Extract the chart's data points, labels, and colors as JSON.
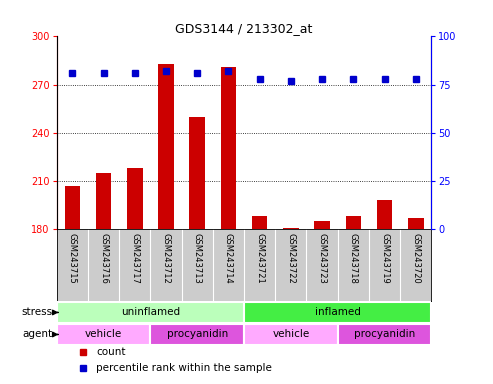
{
  "title": "GDS3144 / 213302_at",
  "samples": [
    "GSM243715",
    "GSM243716",
    "GSM243717",
    "GSM243712",
    "GSM243713",
    "GSM243714",
    "GSM243721",
    "GSM243722",
    "GSM243723",
    "GSM243718",
    "GSM243719",
    "GSM243720"
  ],
  "counts": [
    207,
    215,
    218,
    283,
    250,
    281,
    188,
    181,
    185,
    188,
    198,
    187
  ],
  "percentile_ranks": [
    81,
    81,
    81,
    82,
    81,
    82,
    78,
    77,
    78,
    78,
    78,
    78
  ],
  "ylim_left": [
    180,
    300
  ],
  "ylim_right": [
    0,
    100
  ],
  "yticks_left": [
    180,
    210,
    240,
    270,
    300
  ],
  "yticks_right": [
    0,
    25,
    50,
    75,
    100
  ],
  "bar_color": "#cc0000",
  "dot_color": "#0000cc",
  "stress_groups": [
    {
      "label": "uninflamed",
      "start": 0,
      "end": 6,
      "color": "#bbffbb"
    },
    {
      "label": "inflamed",
      "start": 6,
      "end": 12,
      "color": "#44ee44"
    }
  ],
  "agent_groups": [
    {
      "label": "vehicle",
      "start": 0,
      "end": 3,
      "color": "#ffaaff"
    },
    {
      "label": "procyanidin",
      "start": 3,
      "end": 6,
      "color": "#dd55dd"
    },
    {
      "label": "vehicle",
      "start": 6,
      "end": 9,
      "color": "#ffaaff"
    },
    {
      "label": "procyanidin",
      "start": 9,
      "end": 12,
      "color": "#dd55dd"
    }
  ],
  "legend_items": [
    {
      "label": "count",
      "color": "#cc0000",
      "marker": "s"
    },
    {
      "label": "percentile rank within the sample",
      "color": "#0000cc",
      "marker": "s"
    }
  ],
  "background_color": "#ffffff",
  "tick_area_color": "#cccccc",
  "stress_label": "stress",
  "agent_label": "agent"
}
